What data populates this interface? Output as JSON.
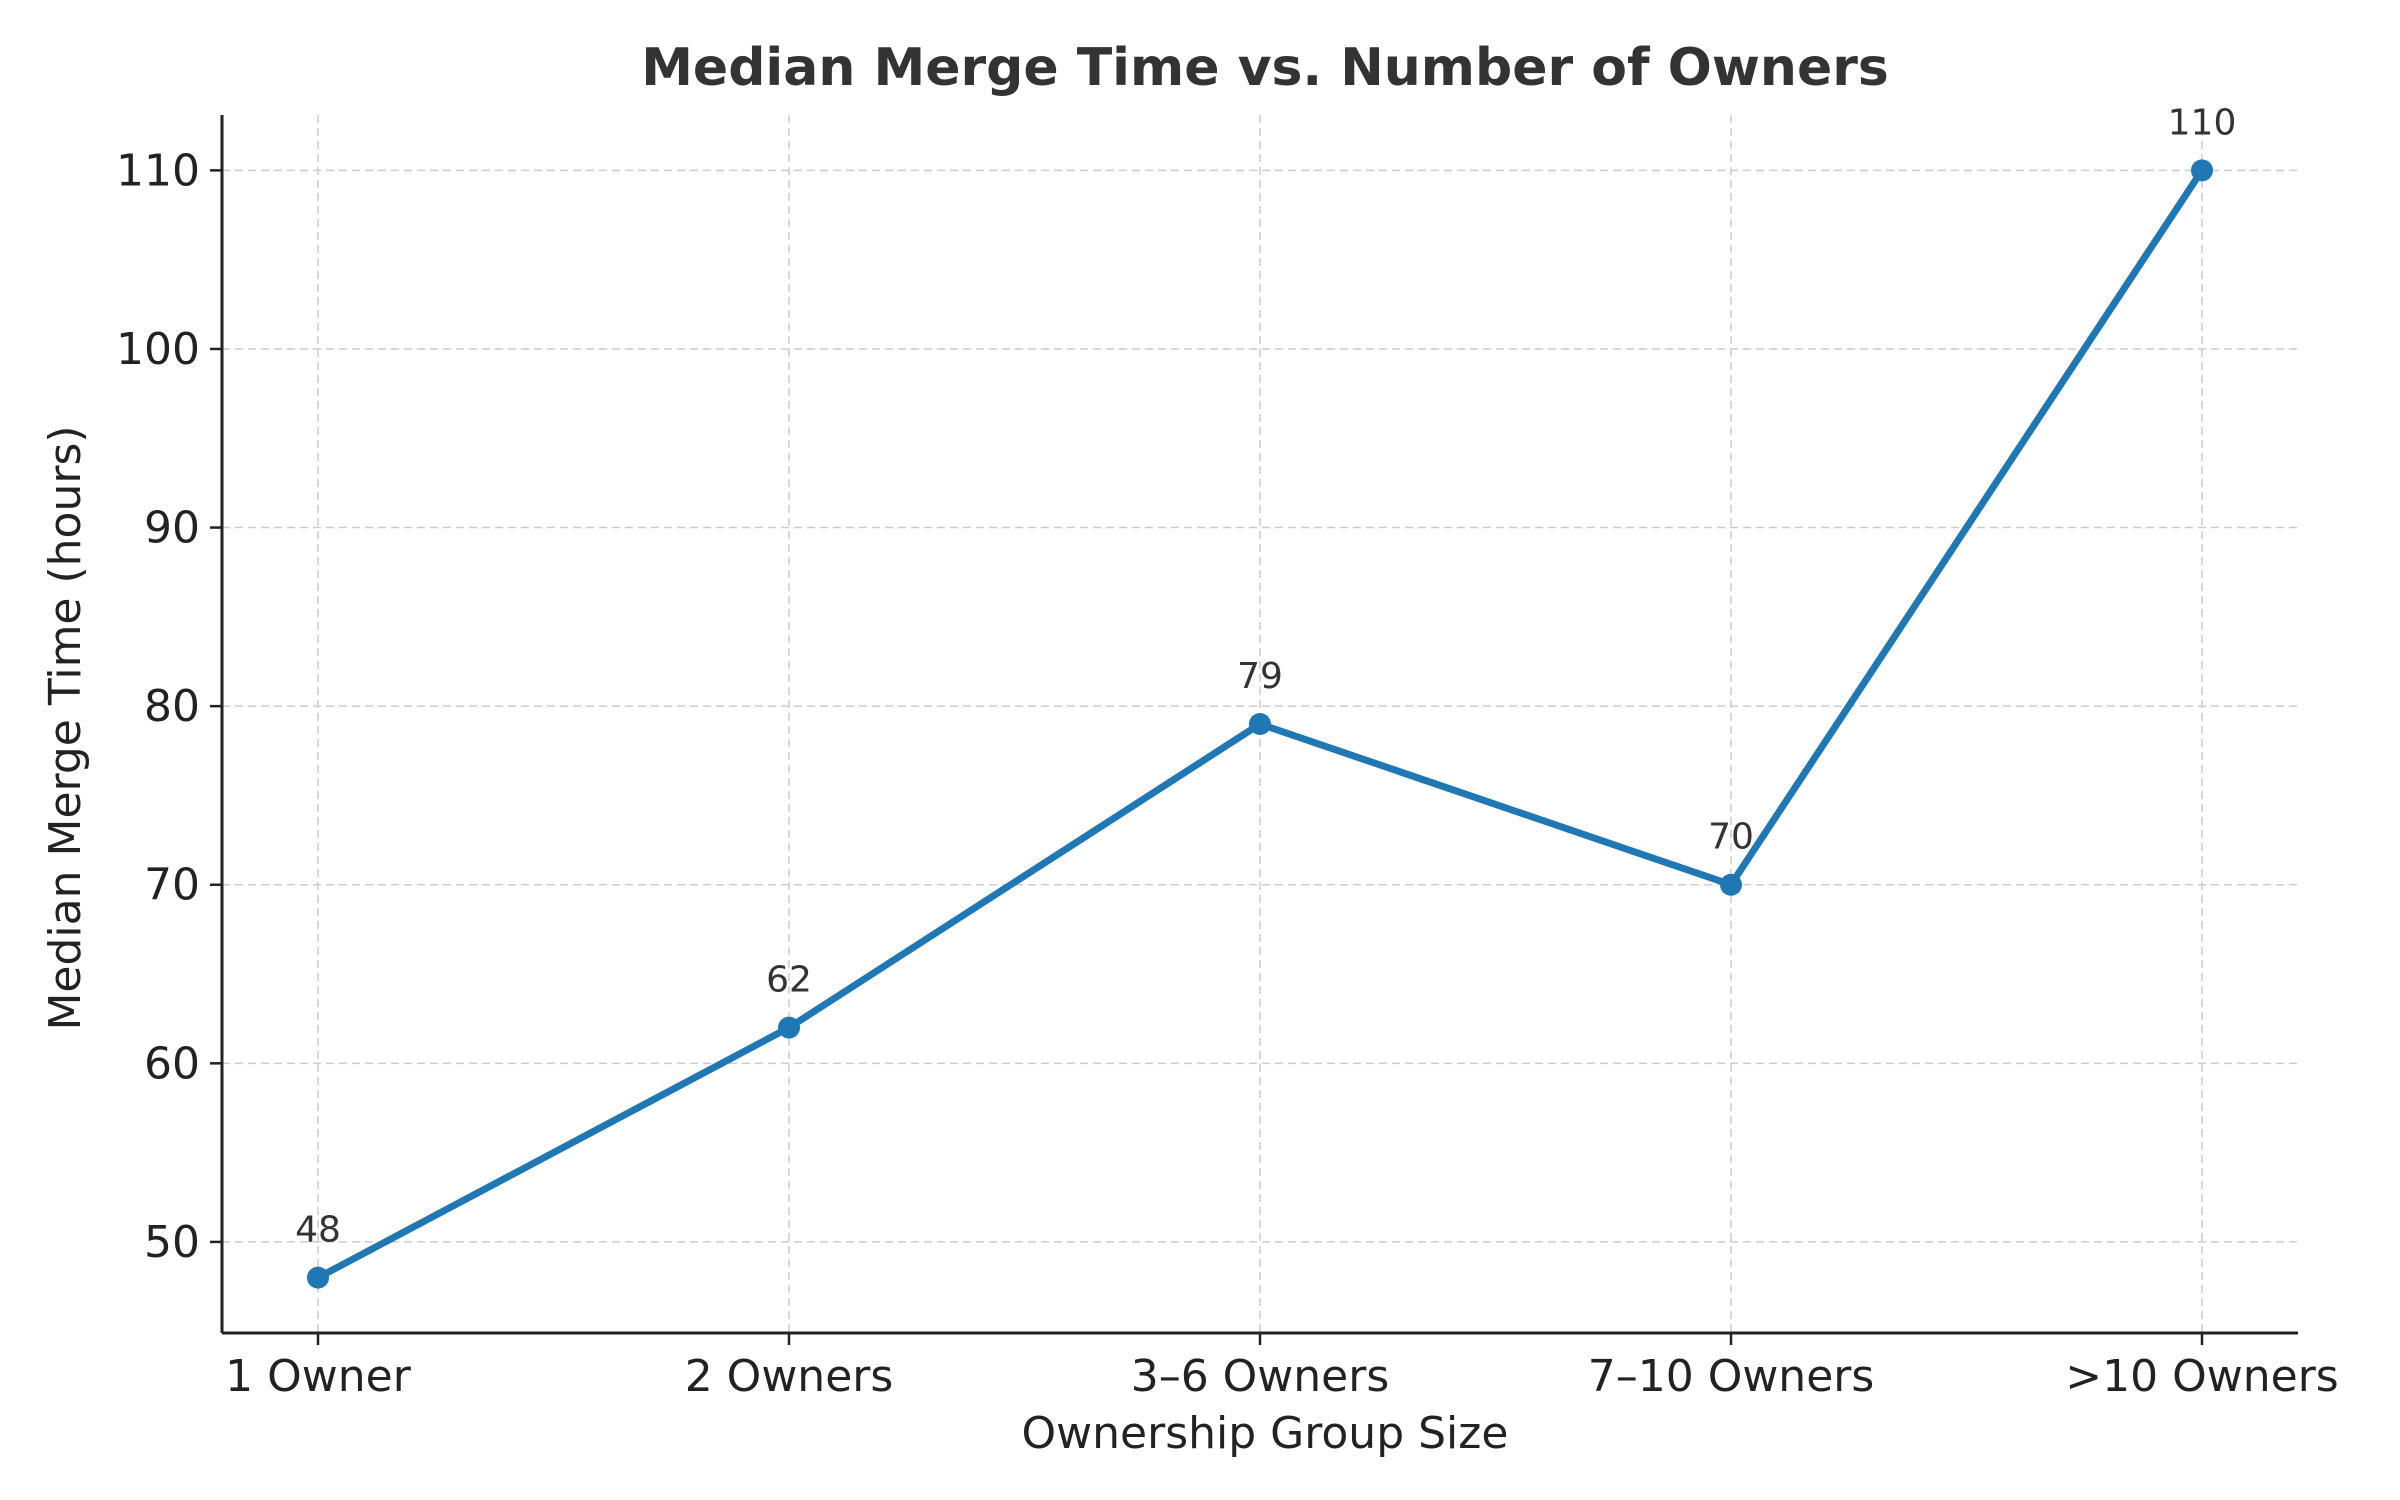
{
  "chart_data": {
    "type": "line",
    "title": "Median Merge Time vs. Number of Owners",
    "xlabel": "Ownership Group Size",
    "ylabel": "Median Merge Time (hours)",
    "categories": [
      "1 Owner",
      "2 Owners",
      "3–6 Owners",
      "7–10 Owners",
      ">10 Owners"
    ],
    "values": [
      48,
      62,
      79,
      70,
      110
    ],
    "yticks": [
      50,
      60,
      70,
      80,
      90,
      100,
      110
    ],
    "ylim": [
      44.9,
      113.1
    ],
    "grid": true,
    "color": "#1f77b4",
    "marker": "circle",
    "data_labels": true
  }
}
